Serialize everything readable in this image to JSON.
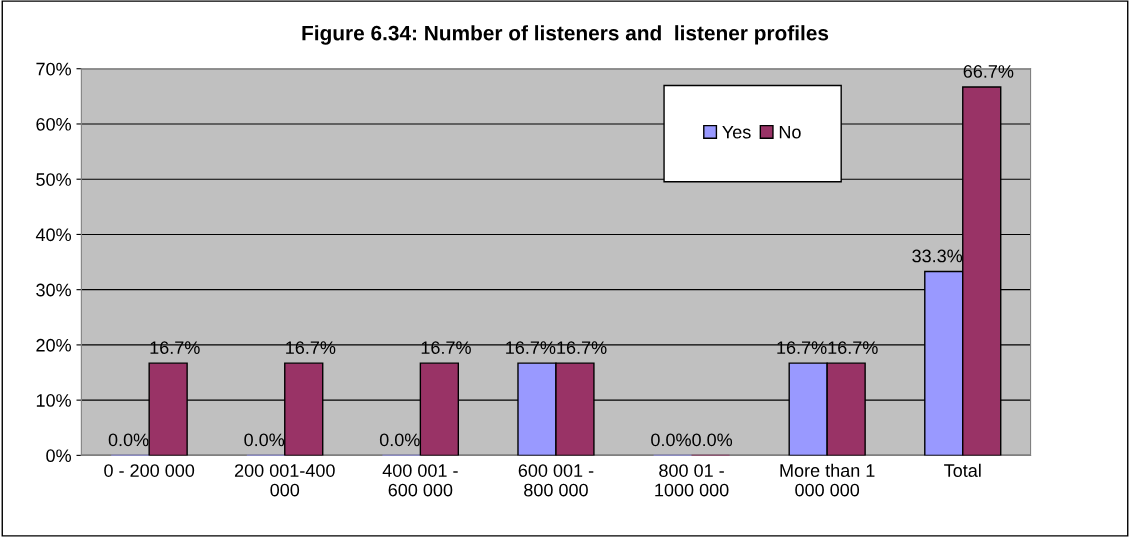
{
  "chart_data": {
    "type": "bar",
    "title": "Figure 6.34: Number of listeners and  listener profiles",
    "categories": [
      "0 - 200 000",
      "200 001-400 000",
      "400 001 - 600 000",
      "600 001 - 800 000",
      "800 01 - 1000 000",
      "More than 1 000 000",
      "Total"
    ],
    "series": [
      {
        "name": "Yes",
        "color": "#9999ff",
        "values": [
          0,
          0,
          0,
          16.7,
          0,
          16.7,
          33.3
        ],
        "value_labels": [
          "0.0%",
          "0.0%",
          "0.0%",
          "16.7%",
          "0.0%",
          "16.7%",
          "33.3%"
        ]
      },
      {
        "name": "No",
        "color": "#993366",
        "values": [
          16.7,
          16.7,
          16.7,
          16.7,
          0,
          16.7,
          66.7
        ],
        "value_labels": [
          "16.7%",
          "16.7%",
          "16.7%",
          "16.7%",
          "0.0%",
          "16.7%",
          "66.7%"
        ]
      }
    ],
    "ylim": [
      0,
      70
    ],
    "yticks": [
      {
        "value": 0,
        "label": "0%"
      },
      {
        "value": 10,
        "label": "10%"
      },
      {
        "value": 20,
        "label": "20%"
      },
      {
        "value": 30,
        "label": "30%"
      },
      {
        "value": 40,
        "label": "40%"
      },
      {
        "value": 50,
        "label": "50%"
      },
      {
        "value": 60,
        "label": "60%"
      },
      {
        "value": 70,
        "label": "70%"
      }
    ],
    "grid": "y",
    "legend": "top right"
  }
}
